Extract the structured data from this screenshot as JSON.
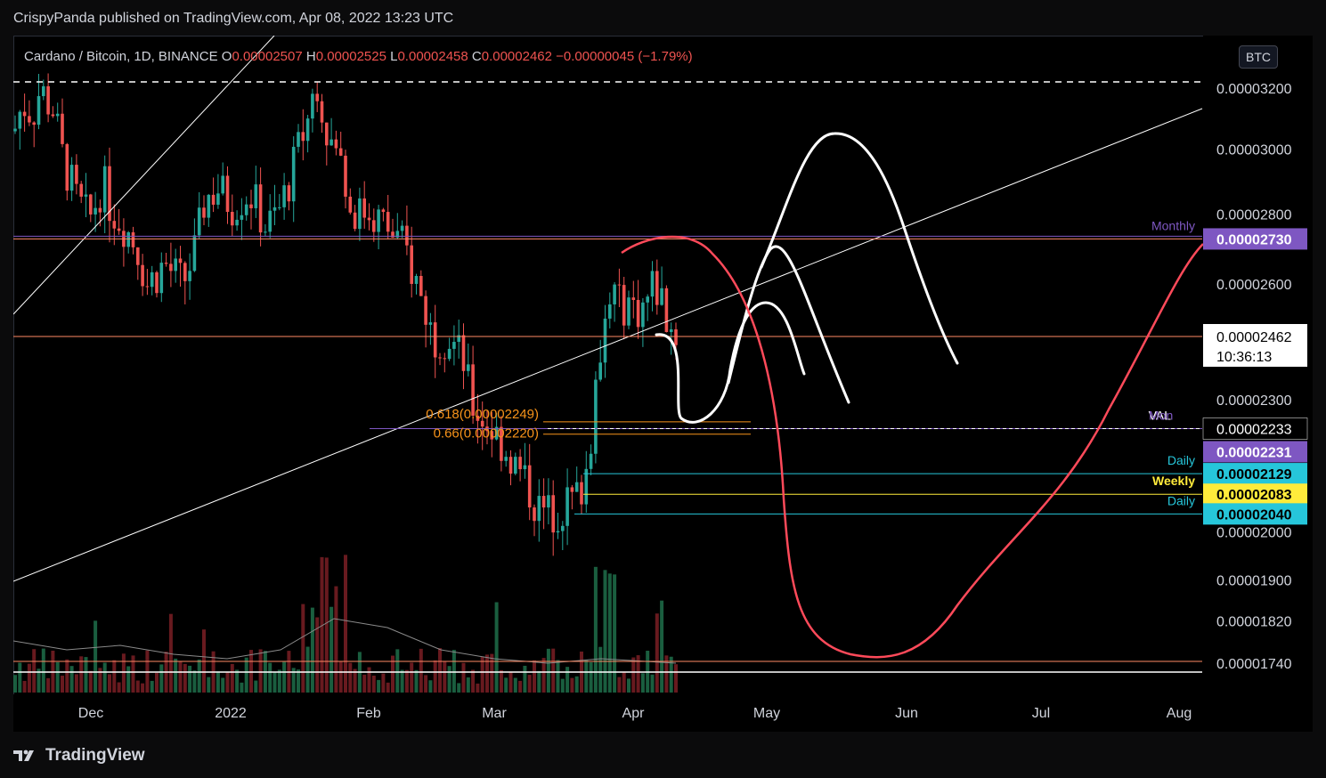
{
  "header": {
    "published_by": "CrispyPanda published on TradingView.com, Apr 08, 2022 13:23 UTC"
  },
  "legend": {
    "symbol": "Cardano / Bitcoin, 1D, BINANCE",
    "open_label": "O",
    "open": "0.00002507",
    "high_label": "H",
    "high": "0.00002525",
    "low_label": "L",
    "low": "0.00002458",
    "close_label": "C",
    "close": "0.00002462",
    "change": "−0.00000045 (−1.79%)"
  },
  "currency_badge": "BTC",
  "footer": {
    "brand": "TradingView"
  },
  "price_tag": {
    "price": "0.00002462",
    "countdown": "10:36:13"
  },
  "colors": {
    "up": "#26a69a",
    "down": "#ef5350",
    "monthly": "#7e57c2",
    "daily": "#26c6da",
    "weekly": "#ffeb3b",
    "fib": "#f7931a",
    "projection": "#ff4a5a"
  },
  "chart_data": {
    "type": "candlestick",
    "x_ticks": [
      "Dec",
      "2022",
      "Feb",
      "Mar",
      "Apr",
      "May",
      "Jun",
      "Jul",
      "Aug"
    ],
    "y_ticks": [
      "0.00003200",
      "0.00003000",
      "0.00002800",
      "0.00002600",
      "0.00002300",
      "0.00002000",
      "0.00001900",
      "0.00001820",
      "0.00001740"
    ],
    "y_scale": "log",
    "levels": [
      {
        "label": "Monthly",
        "value": "0.00002730",
        "color": "#7e57c2"
      },
      {
        "label": "Mon",
        "label2": "VAL",
        "value": "0.00002233",
        "color": "#ffffff"
      },
      {
        "label": "",
        "value": "0.00002231",
        "color": "#7e57c2"
      },
      {
        "label": "Daily",
        "value": "0.00002129",
        "color": "#26c6da"
      },
      {
        "label": "Weekly",
        "value": "0.00002083",
        "color": "#ffeb3b"
      },
      {
        "label": "Daily",
        "value": "0.00002040",
        "color": "#26c6da"
      }
    ],
    "fib_levels": [
      {
        "label": "0.618(0.00002249)",
        "value": 2.249e-05
      },
      {
        "label": "0.66(0.00002220)",
        "value": 2.22e-05
      }
    ],
    "grid": false
  }
}
